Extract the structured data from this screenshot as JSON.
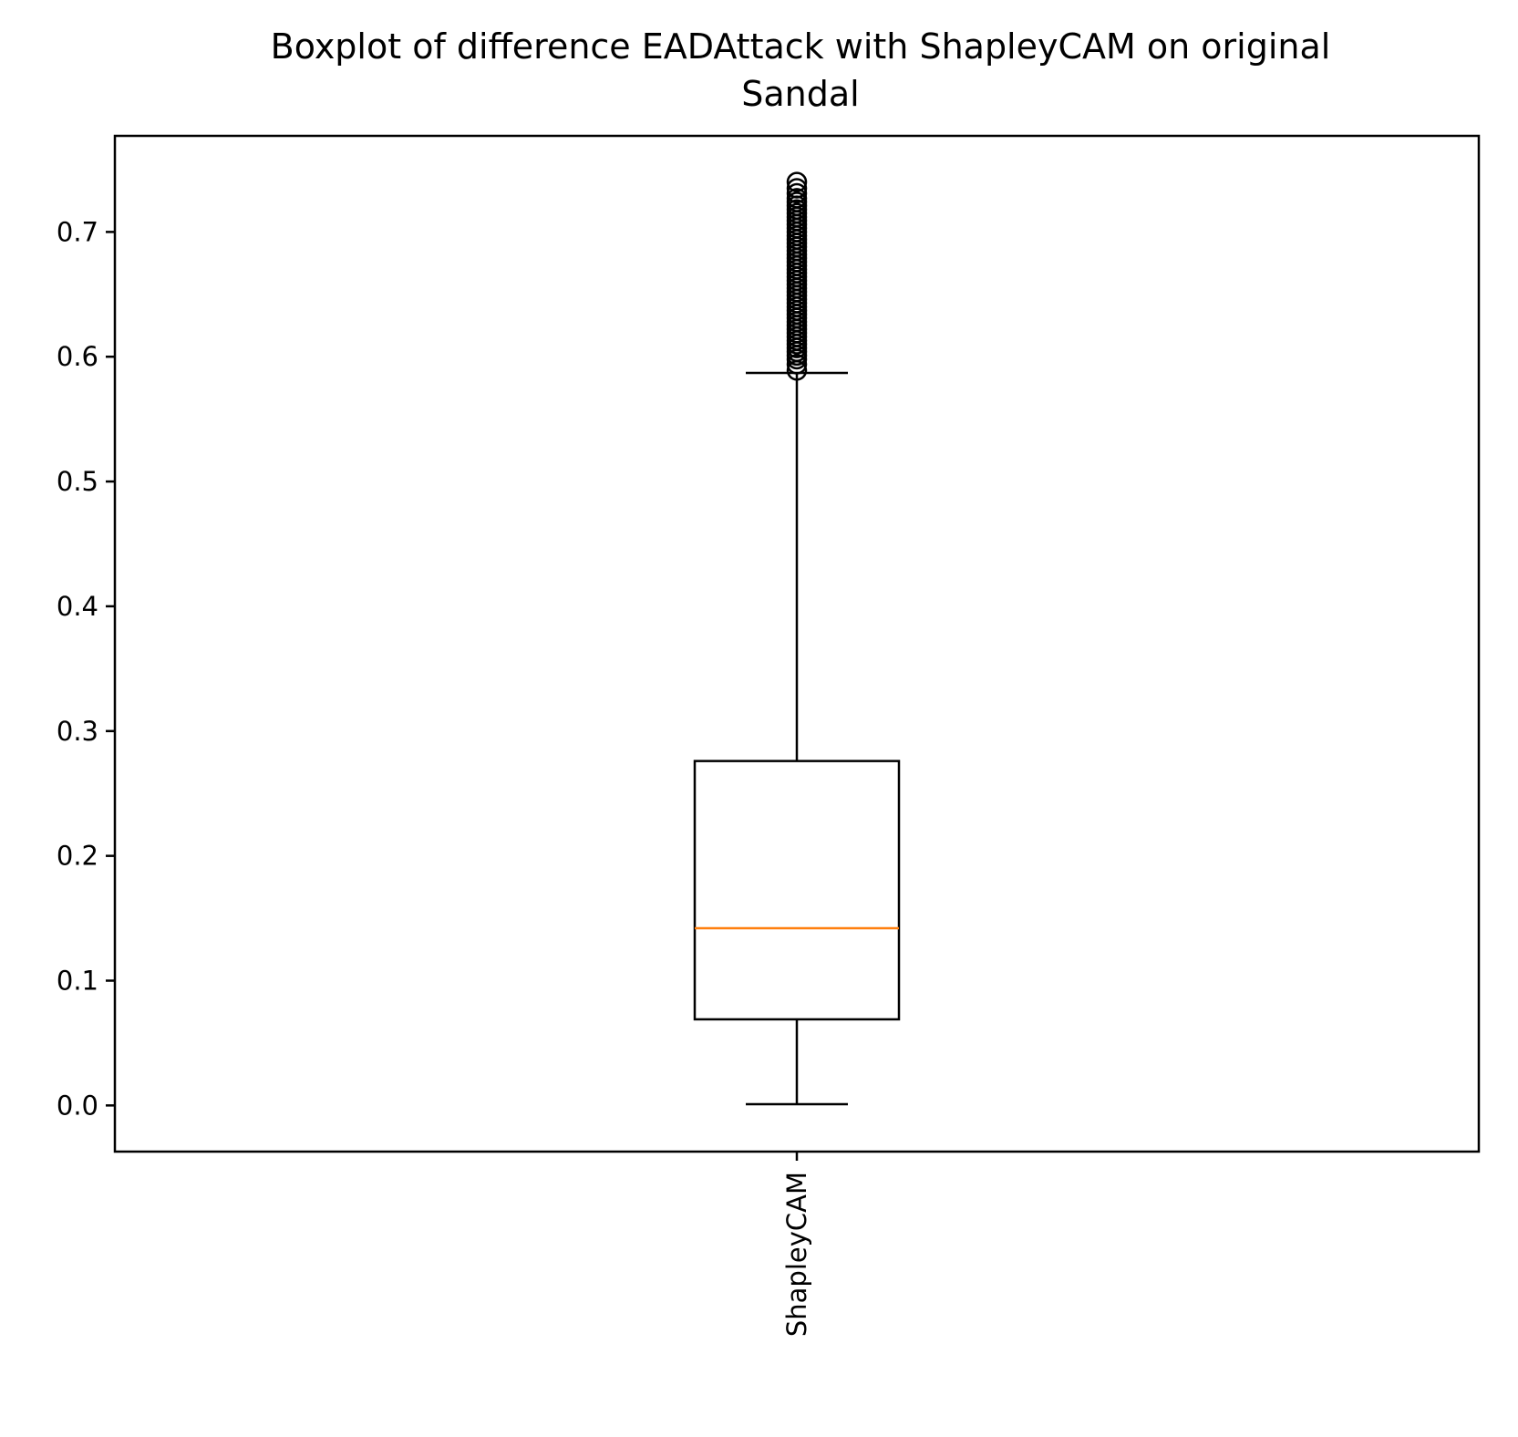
{
  "chart_data": {
    "type": "box",
    "title_lines": [
      "Boxplot of difference EADAttack with ShapleyCAM on original",
      "Sandal"
    ],
    "xlabel": "",
    "ylabel": "",
    "categories": [
      "ShapleyCAM"
    ],
    "ylim": [
      -0.037,
      0.777
    ],
    "yticks": [
      0.0,
      0.1,
      0.2,
      0.3,
      0.4,
      0.5,
      0.6,
      0.7
    ],
    "ytick_labels": [
      "0.0",
      "0.1",
      "0.2",
      "0.3",
      "0.4",
      "0.5",
      "0.6",
      "0.7"
    ],
    "grid": false,
    "legend": "none",
    "boxes": [
      {
        "category": "ShapleyCAM",
        "whisker_low": 0.001,
        "q1": 0.069,
        "median": 0.142,
        "q3": 0.276,
        "whisker_high": 0.587,
        "outliers": [
          0.589,
          0.594,
          0.598,
          0.601,
          0.604,
          0.607,
          0.61,
          0.613,
          0.616,
          0.619,
          0.622,
          0.625,
          0.628,
          0.631,
          0.634,
          0.637,
          0.64,
          0.643,
          0.646,
          0.649,
          0.652,
          0.655,
          0.658,
          0.661,
          0.664,
          0.667,
          0.67,
          0.673,
          0.676,
          0.679,
          0.682,
          0.685,
          0.688,
          0.691,
          0.694,
          0.697,
          0.7,
          0.703,
          0.706,
          0.709,
          0.712,
          0.715,
          0.718,
          0.721,
          0.724,
          0.727,
          0.731,
          0.735,
          0.74
        ]
      }
    ],
    "colors": {
      "box": "#000000",
      "median": "#ff7f0e",
      "axes": "#000000",
      "background": "#ffffff"
    }
  }
}
